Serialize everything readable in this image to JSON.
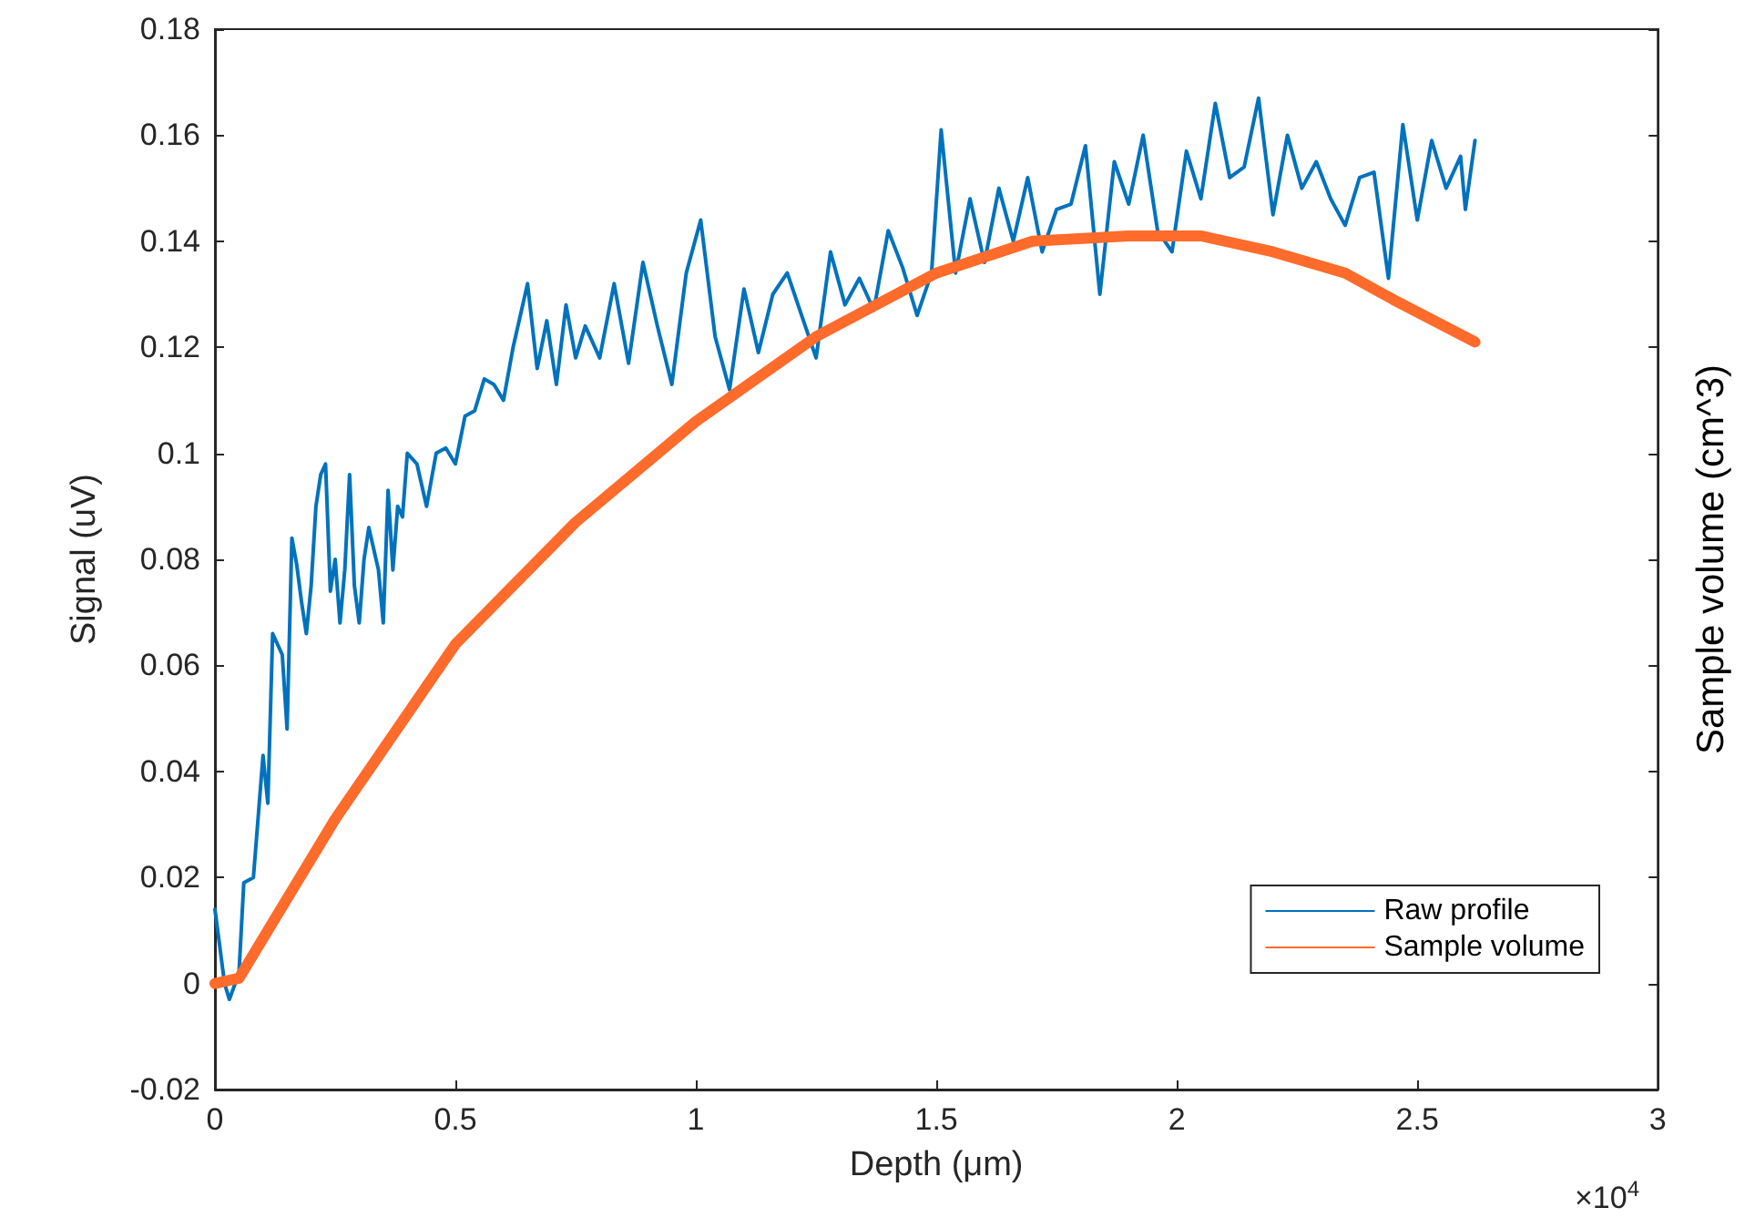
{
  "chart_data": {
    "type": "line",
    "xlabel": "Depth (μm)",
    "ylabel": "Signal (uV)",
    "y2label": "Sample volume (cm^3)",
    "xlim": [
      0,
      3
    ],
    "xticks": [
      0,
      0.5,
      1,
      1.5,
      2,
      2.5,
      3
    ],
    "ylim": [
      -0.02,
      0.18
    ],
    "yticks": [
      -0.02,
      0,
      0.02,
      0.04,
      0.06,
      0.08,
      0.1,
      0.12,
      0.14,
      0.16,
      0.18
    ],
    "annotations": [
      "×10$^{4}$"
    ],
    "grid": false,
    "legend": "bottom right",
    "marker": "none",
    "line_style": "solid",
    "series": [
      {
        "name": "Raw profile",
        "color": "#0072bd",
        "x": [
          0,
          0.02,
          0.03,
          0.05,
          0.06,
          0.08,
          0.1,
          0.11,
          0.12,
          0.14,
          0.15,
          0.16,
          0.17,
          0.18,
          0.19,
          0.2,
          0.21,
          0.22,
          0.23,
          0.24,
          0.25,
          0.26,
          0.27,
          0.28,
          0.29,
          0.3,
          0.31,
          0.32,
          0.34,
          0.35,
          0.36,
          0.37,
          0.38,
          0.39,
          0.4,
          0.42,
          0.44,
          0.46,
          0.48,
          0.5,
          0.52,
          0.54,
          0.56,
          0.58,
          0.6,
          0.62,
          0.65,
          0.67,
          0.69,
          0.71,
          0.73,
          0.75,
          0.77,
          0.8,
          0.83,
          0.86,
          0.89,
          0.92,
          0.95,
          0.98,
          1.01,
          1.04,
          1.07,
          1.1,
          1.13,
          1.16,
          1.19,
          1.22,
          1.25,
          1.28,
          1.31,
          1.34,
          1.37,
          1.4,
          1.43,
          1.46,
          1.49,
          1.51,
          1.54,
          1.57,
          1.6,
          1.63,
          1.66,
          1.69,
          1.72,
          1.75,
          1.78,
          1.81,
          1.84,
          1.87,
          1.9,
          1.93,
          1.96,
          1.99,
          2.02,
          2.05,
          2.08,
          2.11,
          2.14,
          2.17,
          2.2,
          2.23,
          2.26,
          2.29,
          2.32,
          2.35,
          2.38,
          2.41,
          2.44,
          2.47,
          2.5,
          2.53,
          2.56,
          2.59,
          2.6,
          2.62
        ],
        "values": [
          0.014,
          0.0,
          -0.003,
          0.002,
          0.019,
          0.02,
          0.043,
          0.034,
          0.066,
          0.062,
          0.048,
          0.084,
          0.079,
          0.072,
          0.066,
          0.075,
          0.09,
          0.096,
          0.098,
          0.074,
          0.08,
          0.068,
          0.078,
          0.096,
          0.075,
          0.068,
          0.08,
          0.086,
          0.078,
          0.068,
          0.093,
          0.078,
          0.09,
          0.088,
          0.1,
          0.098,
          0.09,
          0.1,
          0.101,
          0.098,
          0.107,
          0.108,
          0.114,
          0.113,
          0.11,
          0.12,
          0.132,
          0.116,
          0.125,
          0.113,
          0.128,
          0.118,
          0.124,
          0.118,
          0.132,
          0.117,
          0.136,
          0.124,
          0.113,
          0.134,
          0.144,
          0.122,
          0.112,
          0.131,
          0.119,
          0.13,
          0.134,
          0.126,
          0.118,
          0.138,
          0.128,
          0.133,
          0.127,
          0.142,
          0.135,
          0.126,
          0.134,
          0.161,
          0.134,
          0.148,
          0.136,
          0.15,
          0.14,
          0.152,
          0.138,
          0.146,
          0.147,
          0.158,
          0.13,
          0.155,
          0.147,
          0.16,
          0.142,
          0.138,
          0.157,
          0.148,
          0.166,
          0.152,
          0.154,
          0.167,
          0.145,
          0.16,
          0.15,
          0.155,
          0.148,
          0.143,
          0.152,
          0.153,
          0.133,
          0.162,
          0.144,
          0.159,
          0.15,
          0.156,
          0.146,
          0.159
        ]
      },
      {
        "name": "Sample volume",
        "color": "#ff6b2b",
        "x": [
          0,
          0.05,
          0.25,
          0.5,
          0.75,
          1,
          1.25,
          1.5,
          1.7,
          1.9,
          2.05,
          2.2,
          2.35,
          2.45,
          2.62
        ],
        "values": [
          0,
          0.001,
          0.031,
          0.064,
          0.087,
          0.106,
          0.122,
          0.134,
          0.14,
          0.141,
          0.141,
          0.138,
          0.134,
          0.129,
          0.121
        ]
      }
    ]
  }
}
